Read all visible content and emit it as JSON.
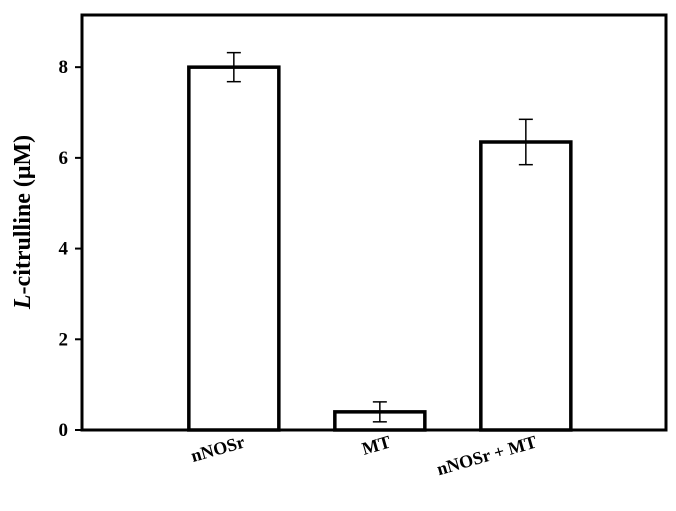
{
  "chart_data": {
    "type": "bar",
    "title": "",
    "xlabel": "",
    "ylabel_parts": {
      "italic": "L",
      "rest": "-citrulline (μM)"
    },
    "categories": [
      "nNOSr",
      "MT",
      "nNOSr + MT"
    ],
    "values": [
      8.0,
      0.4,
      6.35
    ],
    "errors": [
      0.32,
      0.22,
      0.5
    ],
    "ylim": [
      0,
      9.15
    ],
    "yticks": [
      0,
      2,
      4,
      6,
      8
    ],
    "ytick_labels": [
      "0",
      "2",
      "4",
      "6",
      "8"
    ],
    "grid": false,
    "legend": "none",
    "colors": {
      "bar_fill": "#ffffff",
      "bar_stroke": "#000000"
    }
  }
}
